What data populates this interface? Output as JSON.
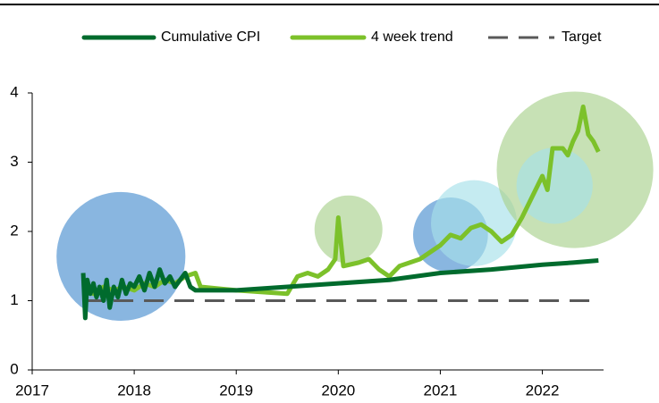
{
  "chart_data": {
    "type": "line",
    "xlim": [
      2017,
      2022.6
    ],
    "xticks": [
      2017,
      2018,
      2019,
      2020,
      2021,
      2022
    ],
    "ylim": [
      0,
      4
    ],
    "yticks": [
      0,
      1,
      2,
      3,
      4
    ],
    "series": [
      {
        "name": "Cumulative CPI",
        "color": "#006b2d",
        "x": [
          2017.5,
          2017.52,
          2017.54,
          2017.57,
          2017.6,
          2017.63,
          2017.66,
          2017.7,
          2017.73,
          2017.76,
          2017.8,
          2017.84,
          2017.88,
          2017.92,
          2017.96,
          2018.0,
          2018.05,
          2018.1,
          2018.15,
          2018.2,
          2018.25,
          2018.3,
          2018.35,
          2018.4,
          2018.45,
          2018.5,
          2018.55,
          2018.6,
          2019.0,
          2019.5,
          2020.0,
          2020.5,
          2021.0,
          2021.5,
          2022.0,
          2022.3,
          2022.55
        ],
        "values": [
          1.4,
          0.75,
          1.3,
          1.1,
          1.25,
          1.05,
          1.2,
          1.0,
          1.3,
          0.9,
          1.2,
          1.05,
          1.3,
          1.1,
          1.25,
          1.2,
          1.35,
          1.15,
          1.4,
          1.2,
          1.45,
          1.25,
          1.35,
          1.2,
          1.3,
          1.4,
          1.2,
          1.15,
          1.15,
          1.2,
          1.25,
          1.3,
          1.4,
          1.45,
          1.52,
          1.55,
          1.58
        ]
      },
      {
        "name": "4 week trend",
        "color": "#7cc12a",
        "x": [
          2017.5,
          2017.6,
          2017.7,
          2017.8,
          2017.9,
          2018.0,
          2018.1,
          2018.2,
          2018.3,
          2018.4,
          2018.5,
          2018.6,
          2018.65,
          2019.0,
          2019.5,
          2019.6,
          2019.7,
          2019.8,
          2019.9,
          2019.97,
          2020.0,
          2020.05,
          2020.2,
          2020.3,
          2020.4,
          2020.5,
          2020.6,
          2020.8,
          2020.9,
          2021.0,
          2021.1,
          2021.2,
          2021.3,
          2021.4,
          2021.5,
          2021.6,
          2021.7,
          2021.8,
          2021.9,
          2022.0,
          2022.05,
          2022.1,
          2022.2,
          2022.25,
          2022.3,
          2022.35,
          2022.4,
          2022.45,
          2022.5,
          2022.55
        ],
        "values": [
          1.25,
          1.1,
          1.2,
          1.15,
          1.2,
          1.15,
          1.25,
          1.2,
          1.3,
          1.25,
          1.35,
          1.4,
          1.2,
          1.15,
          1.1,
          1.35,
          1.4,
          1.35,
          1.45,
          1.6,
          2.2,
          1.5,
          1.55,
          1.6,
          1.45,
          1.35,
          1.5,
          1.6,
          1.7,
          1.8,
          1.95,
          1.9,
          2.05,
          2.1,
          2.0,
          1.85,
          1.95,
          2.2,
          2.5,
          2.8,
          2.6,
          3.2,
          3.2,
          3.1,
          3.3,
          3.45,
          3.8,
          3.4,
          3.3,
          3.15
        ]
      },
      {
        "name": "Target",
        "color": "#595959",
        "dashed": true,
        "x": [
          2017.5,
          2022.55
        ],
        "values": [
          1,
          1
        ]
      }
    ],
    "bubbles": {
      "x": [
        2017.87,
        2020.1,
        2021.1,
        2021.33,
        2022.32,
        2022.12
      ],
      "y": [
        1.64,
        2.03,
        1.95,
        2.12,
        2.89,
        2.66
      ],
      "size": [
        0.93,
        0.49,
        0.54,
        0.62,
        1.13,
        0.55
      ],
      "colors": [
        "#4a8fd0",
        "#a9d18e",
        "#4a8fd0",
        "#a6e0ea",
        "#a9d18e",
        "#a6e0ea"
      ]
    }
  }
}
